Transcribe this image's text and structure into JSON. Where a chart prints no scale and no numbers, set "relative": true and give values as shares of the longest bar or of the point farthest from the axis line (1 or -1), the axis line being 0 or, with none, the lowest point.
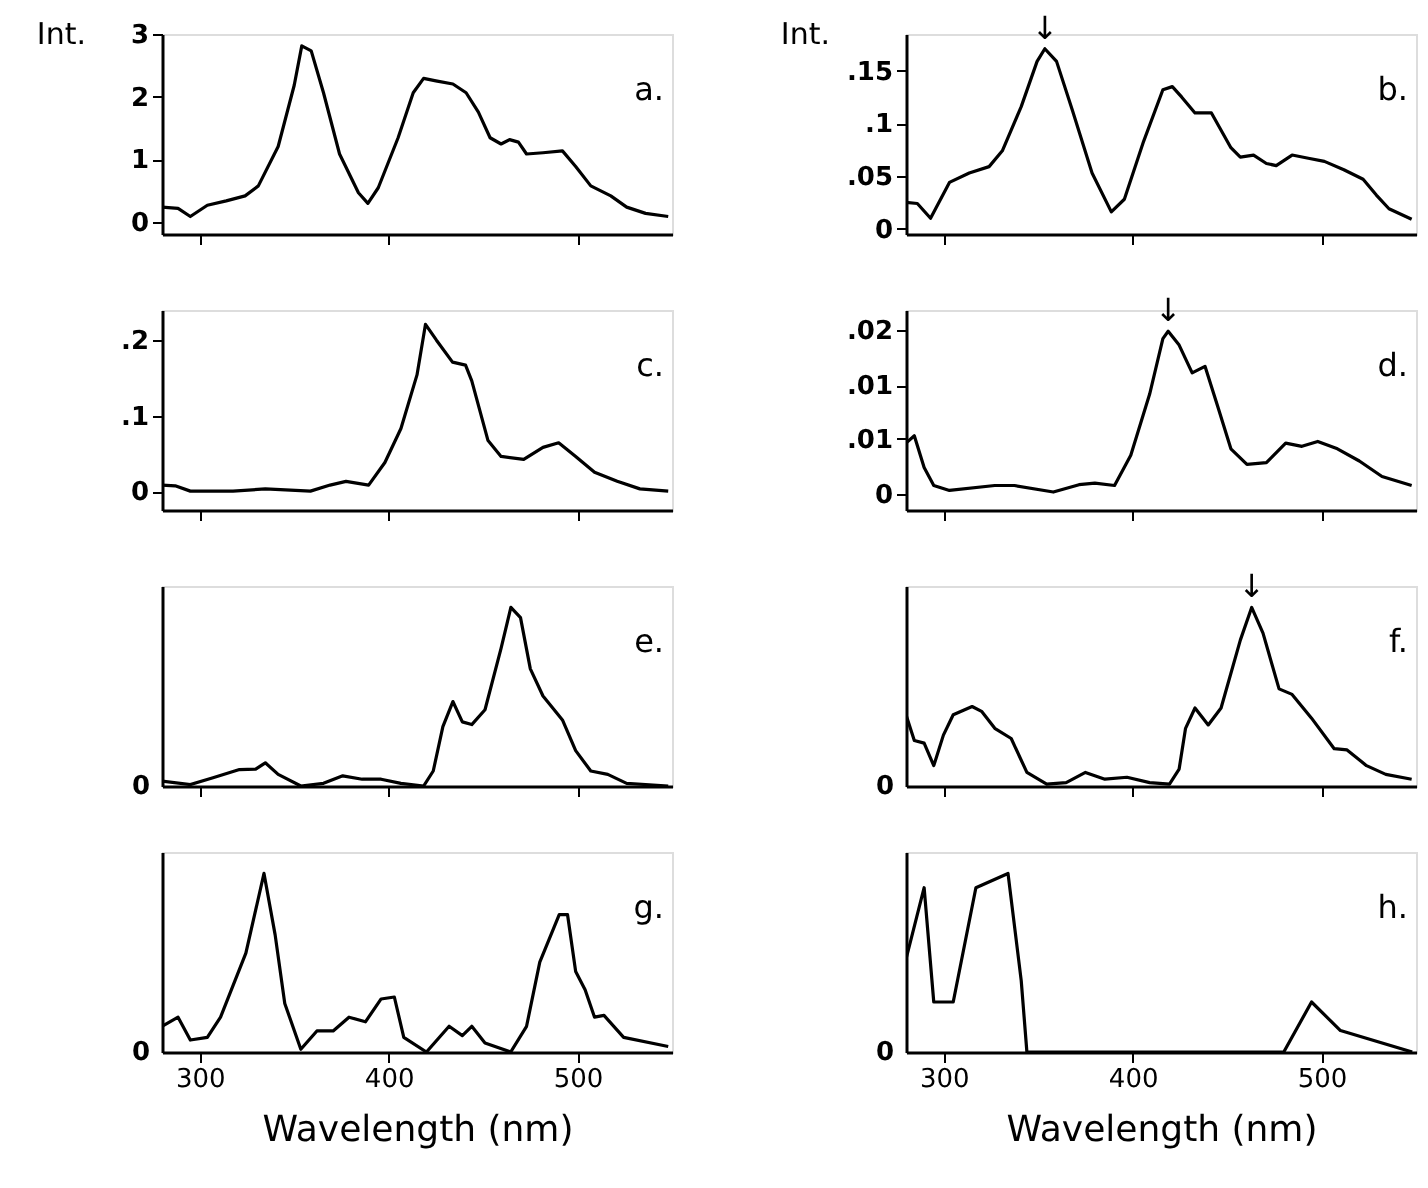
{
  "chart_data": [
    {
      "type": "line",
      "title": "a.",
      "ylabel": "Int.",
      "xlim": [
        280,
        550
      ],
      "xticks": [
        300,
        400,
        500
      ],
      "ylim": [
        -0.2,
        3
      ],
      "yticks": [
        0,
        1,
        2,
        3
      ],
      "tick_labels": "y",
      "grid": false,
      "x": [
        280,
        288.5,
        295,
        304,
        314,
        324,
        331,
        341.5,
        350,
        354,
        359,
        365.5,
        374,
        384,
        389,
        394.5,
        405,
        413,
        418.5,
        425,
        434,
        441,
        447.5,
        453.7,
        459.5,
        464,
        468.7,
        473,
        481.7,
        492,
        499,
        507,
        517.6,
        526,
        536,
        548
      ],
      "series": [
        {
          "color": "#000000",
          "values": [
            0.23,
            0.21,
            0.08,
            0.26,
            0.33,
            0.41,
            0.57,
            1.2,
            2.18,
            2.81,
            2.73,
            2.06,
            1.08,
            0.46,
            0.29,
            0.54,
            1.34,
            2.06,
            2.29,
            2.25,
            2.2,
            2.06,
            1.75,
            1.34,
            1.24,
            1.31,
            1.27,
            1.08,
            1.1,
            1.13,
            0.88,
            0.57,
            0.41,
            0.23,
            0.13,
            0.08
          ]
        }
      ]
    },
    {
      "type": "line",
      "title": "b.",
      "ylabel": "Int.",
      "xlim": [
        280,
        550
      ],
      "xticks": [
        300,
        400,
        500
      ],
      "ylim": [
        -0.005,
        0.185
      ],
      "yticks": [
        0,
        {
          "value": 0.05,
          "label": ".05"
        },
        {
          "value": 0.1,
          "label": ".1"
        },
        {
          "value": 0.15,
          "label": ".15"
        }
      ],
      "tick_labels": "y",
      "grid": false,
      "annotations": [
        {
          "text": "↓",
          "x": 353.5,
          "y": 0.171
        }
      ],
      "x": [
        280,
        286,
        293,
        303,
        313.5,
        324,
        331,
        341,
        349.4,
        353.5,
        359.7,
        368,
        378.5,
        388.7,
        395.6,
        405.8,
        416,
        421,
        426,
        433,
        441.7,
        452,
        457,
        464,
        470.8,
        476,
        484.4,
        493,
        501.5,
        511.8,
        522,
        529,
        535.7,
        547.7
      ],
      "series": [
        {
          "color": "#000000",
          "values": [
            0.025,
            0.024,
            0.01,
            0.044,
            0.053,
            0.059,
            0.074,
            0.116,
            0.159,
            0.171,
            0.159,
            0.113,
            0.053,
            0.016,
            0.028,
            0.083,
            0.132,
            0.135,
            0.125,
            0.11,
            0.11,
            0.077,
            0.068,
            0.07,
            0.062,
            0.06,
            0.07,
            0.067,
            0.064,
            0.056,
            0.047,
            0.032,
            0.019,
            0.009
          ]
        }
      ]
    },
    {
      "type": "line",
      "title": "c.",
      "xlim": [
        280,
        550
      ],
      "xticks": [
        300,
        400,
        500
      ],
      "ylim": [
        -0.025,
        0.24
      ],
      "yticks": [
        0,
        {
          "value": 0.1,
          "label": ".1"
        },
        {
          "value": 0.2,
          "label": ".2"
        }
      ],
      "tick_labels": "y",
      "grid": false,
      "x": [
        280,
        287,
        295,
        317.6,
        334.7,
        358.6,
        369,
        377.4,
        389.4,
        398,
        406.5,
        415,
        419.5,
        425.3,
        433.8,
        440.7,
        444,
        452.6,
        459.5,
        471.5,
        481.7,
        490,
        499,
        509,
        521,
        533,
        548
      ],
      "series": [
        {
          "color": "#000000",
          "values": [
            0.008,
            0.007,
            0,
            0,
            0.003,
            0,
            0.008,
            0.013,
            0.008,
            0.038,
            0.083,
            0.154,
            0.221,
            0.2,
            0.171,
            0.167,
            0.146,
            0.067,
            0.046,
            0.042,
            0.058,
            0.064,
            0.046,
            0.025,
            0.013,
            0.003,
            0
          ]
        }
      ]
    },
    {
      "type": "line",
      "title": "d.",
      "xlim": [
        280,
        550
      ],
      "xticks": [
        300,
        400,
        500
      ],
      "ylim": [
        -0.002,
        0.0225
      ],
      "yticks": [
        0,
        {
          "value": 0.0067,
          "label": ".01"
        },
        {
          "value": 0.0133,
          "label": ".01"
        },
        {
          "value": 0.02,
          "label": ".02"
        }
      ],
      "tick_labels": "y",
      "grid": false,
      "annotations": [
        {
          "text": "↓",
          "x": 418.8,
          "y": 0.0199
        }
      ],
      "x": [
        280,
        284.4,
        289.6,
        294.7,
        303,
        327,
        337.4,
        358,
        371.6,
        380,
        390.4,
        399,
        409,
        416,
        418.8,
        424.6,
        431.5,
        438.3,
        445,
        452,
        460.5,
        470.8,
        481,
        489.6,
        498,
        508.4,
        520,
        532,
        547.7
      ],
      "series": [
        {
          "color": "#000000",
          "values": [
            0.0062,
            0.0071,
            0.0032,
            0.001,
            0.0004,
            0.001,
            0.001,
            0.0002,
            0.0011,
            0.0013,
            0.001,
            0.0047,
            0.0122,
            0.019,
            0.0199,
            0.0182,
            0.0148,
            0.0156,
            0.0107,
            0.0055,
            0.0036,
            0.0038,
            0.0062,
            0.0058,
            0.0064,
            0.0055,
            0.004,
            0.0021,
            0.001
          ]
        }
      ]
    },
    {
      "type": "line",
      "title": "e.",
      "relative": true,
      "xlim": [
        280,
        550
      ],
      "xticks": [
        300,
        400,
        500
      ],
      "tick_labels": false,
      "grid": false,
      "annotations": [
        "0"
      ],
      "x": [
        280,
        295,
        307,
        321,
        329.6,
        334.7,
        341.5,
        353.5,
        365.5,
        375.7,
        386,
        396,
        406.5,
        418.5,
        423.6,
        428.7,
        434,
        439,
        444,
        451,
        459.5,
        464.7,
        469.8,
        475,
        481.7,
        492,
        499,
        507,
        516,
        526,
        548
      ],
      "series": [
        {
          "color": "#000000",
          "values": [
            0.027,
            0.008,
            0.046,
            0.092,
            0.095,
            0.13,
            0.065,
            0,
            0.015,
            0.057,
            0.038,
            0.038,
            0.015,
            0,
            0.084,
            0.332,
            0.473,
            0.359,
            0.344,
            0.427,
            0.771,
            1.0,
            0.943,
            0.656,
            0.504,
            0.37,
            0.198,
            0.084,
            0.065,
            0.015,
            0
          ]
        }
      ]
    },
    {
      "type": "line",
      "title": "f.",
      "relative": true,
      "xlim": [
        280,
        550
      ],
      "xticks": [
        300,
        400,
        500
      ],
      "tick_labels": false,
      "grid": false,
      "annotations": [
        "0",
        {
          "text": "↓",
          "x": 463,
          "y": 1.0
        }
      ],
      "x": [
        280,
        284.4,
        289.6,
        294.7,
        299.8,
        305,
        315,
        320,
        327,
        335.7,
        344,
        354.5,
        364.8,
        375,
        385.3,
        397,
        409,
        419.5,
        424.6,
        428,
        433,
        440,
        446.8,
        457,
        463,
        469,
        477.5,
        484.4,
        494.7,
        506.7,
        513.5,
        523.8,
        534,
        547.7
      ],
      "series": [
        {
          "color": "#000000",
          "values": [
            0.399,
            0.255,
            0.24,
            0.114,
            0.285,
            0.399,
            0.445,
            0.418,
            0.323,
            0.266,
            0.076,
            0.011,
            0.019,
            0.076,
            0.038,
            0.049,
            0.019,
            0.011,
            0.095,
            0.323,
            0.437,
            0.342,
            0.437,
            0.817,
            1.0,
            0.856,
            0.544,
            0.513,
            0.38,
            0.209,
            0.202,
            0.114,
            0.065,
            0.038
          ]
        }
      ]
    },
    {
      "type": "line",
      "title": "g.",
      "relative": true,
      "xlabel": "Wavelength (nm)",
      "xlim": [
        280,
        550
      ],
      "xticks": [
        300,
        400,
        500
      ],
      "grid": false,
      "annotations": [
        "0"
      ],
      "x": [
        280,
        288.5,
        295,
        304,
        311,
        324.4,
        334,
        339.9,
        345,
        353.5,
        362,
        370.6,
        379,
        387.7,
        396,
        403,
        408,
        420,
        432,
        439,
        444,
        451,
        464.6,
        473,
        480,
        490.3,
        494.7,
        499,
        504,
        509,
        514,
        524.4,
        548
      ],
      "series": [
        {
          "color": "#000000",
          "values": [
            0.144,
            0.195,
            0.067,
            0.082,
            0.195,
            0.554,
            1.0,
            0.656,
            0.272,
            0.015,
            0.118,
            0.118,
            0.195,
            0.169,
            0.297,
            0.308,
            0.082,
            0,
            0.144,
            0.092,
            0.144,
            0.051,
            0,
            0.144,
            0.503,
            0.769,
            0.769,
            0.451,
            0.349,
            0.195,
            0.205,
            0.082,
            0.031
          ]
        }
      ]
    },
    {
      "type": "line",
      "title": "h.",
      "relative": true,
      "xlabel": "Wavelength (nm)",
      "xlim": [
        280,
        550
      ],
      "xticks": [
        300,
        400,
        500
      ],
      "grid": false,
      "annotations": [
        "0"
      ],
      "x": [
        280,
        289.6,
        294.7,
        305,
        317,
        334,
        341,
        344,
        400,
        480,
        494.7,
        510,
        548
      ],
      "series": [
        {
          "color": "#000000",
          "values": [
            0.52,
            0.92,
            0.28,
            0.28,
            0.92,
            1.0,
            0.4,
            0,
            0,
            0,
            0.28,
            0.12,
            0
          ]
        }
      ]
    }
  ]
}
